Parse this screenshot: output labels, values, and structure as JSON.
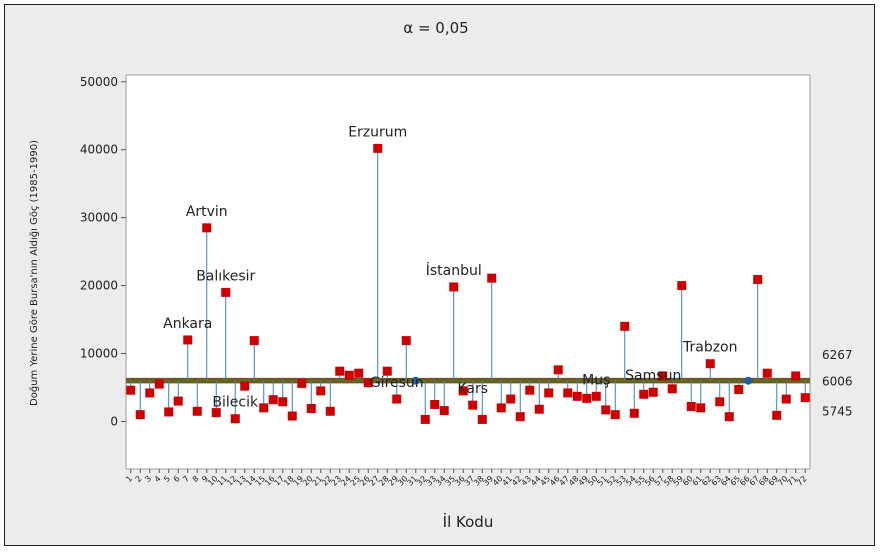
{
  "chart_data": {
    "type": "anom",
    "title": "α = 0,05",
    "xlabel": "İl Kodu",
    "ylabel": "Doğum Yerine Göre Bursa'nın Aldığı Göç (1985-1990)",
    "ylim": [
      -7000,
      51000
    ],
    "yticks": [
      0,
      10000,
      20000,
      30000,
      40000,
      50000
    ],
    "ytick_labels": [
      "0",
      "10000",
      "20000",
      "30000",
      "40000",
      "50000"
    ],
    "center": 6006,
    "udl": 6267,
    "ldl": 5745,
    "limit_labels": {
      "udl": "6267",
      "center": "6006",
      "ldl": "5745"
    },
    "x": [
      1,
      2,
      3,
      4,
      5,
      6,
      7,
      8,
      9,
      10,
      11,
      12,
      13,
      14,
      15,
      16,
      17,
      18,
      19,
      20,
      21,
      22,
      23,
      24,
      25,
      26,
      27,
      28,
      29,
      30,
      31,
      32,
      33,
      34,
      35,
      36,
      37,
      38,
      39,
      40,
      41,
      42,
      43,
      44,
      45,
      46,
      47,
      48,
      49,
      50,
      51,
      52,
      53,
      54,
      55,
      56,
      57,
      58,
      59,
      60,
      61,
      62,
      63,
      64,
      65,
      66,
      67,
      68,
      69,
      70,
      71,
      72
    ],
    "values": [
      4600,
      1000,
      4200,
      5500,
      1400,
      3000,
      12000,
      1500,
      28500,
      1300,
      19000,
      400,
      5200,
      11900,
      2000,
      3200,
      2900,
      800,
      5600,
      1900,
      4500,
      1500,
      7400,
      6800,
      7100,
      5700,
      40200,
      7400,
      3300,
      11900,
      6000,
      300,
      2500,
      1600,
      19800,
      4500,
      2400,
      300,
      21100,
      2000,
      3300,
      700,
      4600,
      1800,
      4200,
      7600,
      4200,
      3700,
      3400,
      3700,
      1700,
      1000,
      14000,
      1200,
      4000,
      4300,
      6700,
      4800,
      20000,
      2200,
      2000,
      8500,
      2900,
      700,
      4700,
      6000,
      20900,
      7100,
      900,
      3300,
      6700,
      3500
    ],
    "labels": {
      "6": "Ankara",
      "8": "Artvin",
      "10": "Balıkesir",
      "11": "Bilecik",
      "26": "Erzurum",
      "28": "Giresun",
      "34": "İstanbul",
      "36": "Kars",
      "49": "Muş",
      "55": "Samsun",
      "61": "Trabzon"
    },
    "xtick_labels": [
      "1",
      "2",
      "3",
      "4",
      "5",
      "6",
      "7",
      "8",
      "9",
      "10",
      "11",
      "12",
      "13",
      "14",
      "15",
      "16",
      "17",
      "18",
      "19",
      "20",
      "21",
      "22",
      "23",
      "24",
      "25",
      "26",
      "27",
      "28",
      "29",
      "30",
      "31",
      "32",
      "33",
      "34",
      "35",
      "36",
      "37",
      "38",
      "39",
      "40",
      "41",
      "42",
      "43",
      "44",
      "45",
      "46",
      "47",
      "48",
      "49",
      "50",
      "51",
      "52",
      "53",
      "54",
      "55",
      "56",
      "57",
      "58",
      "59",
      "60",
      "61",
      "62",
      "63",
      "64",
      "65",
      "66",
      "67",
      "68",
      "69",
      "70",
      "71",
      "72"
    ],
    "colors": {
      "outside": "#cc0000",
      "inside": "#1f5fa8",
      "stem": "#3a7ec8",
      "center_line": "#5c6b1e",
      "limit_line": "#7a4f1c"
    }
  }
}
